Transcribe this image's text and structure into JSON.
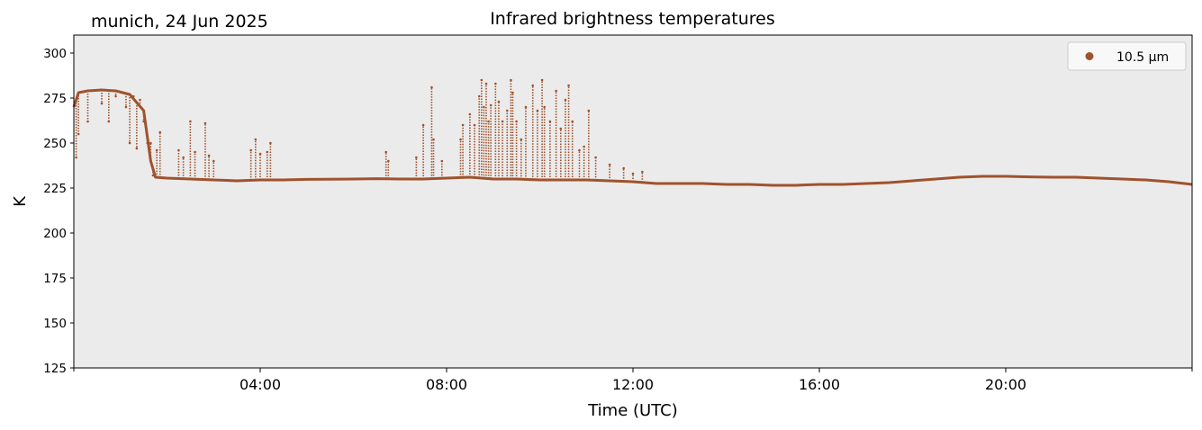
{
  "header": {
    "site_label": "munich, 24 Jun 2025",
    "title": "Infrared brightness temperatures"
  },
  "chart_data": {
    "type": "scatter",
    "title": "Infrared brightness temperatures",
    "xlabel": "Time (UTC)",
    "ylabel": "K",
    "xlim": [
      0,
      24
    ],
    "ylim": [
      125,
      310
    ],
    "x_ticks": [
      {
        "value": 4,
        "label": "04:00"
      },
      {
        "value": 8,
        "label": "08:00"
      },
      {
        "value": 12,
        "label": "12:00"
      },
      {
        "value": 16,
        "label": "16:00"
      },
      {
        "value": 20,
        "label": "20:00"
      }
    ],
    "y_ticks": [
      125,
      150,
      175,
      200,
      225,
      250,
      275,
      300
    ],
    "grid": false,
    "background_color": "#ebebeb",
    "legend": {
      "position": "top-right"
    },
    "series": [
      {
        "name": "10.5 µm",
        "color": "#a0522d",
        "baseline": [
          [
            0.0,
            270
          ],
          [
            0.1,
            278
          ],
          [
            0.3,
            279
          ],
          [
            0.6,
            279.5
          ],
          [
            0.9,
            279
          ],
          [
            1.2,
            277
          ],
          [
            1.5,
            268
          ],
          [
            1.65,
            240
          ],
          [
            1.75,
            231
          ],
          [
            2.0,
            230.5
          ],
          [
            2.5,
            230
          ],
          [
            3.0,
            229.5
          ],
          [
            3.5,
            229
          ],
          [
            4.0,
            229.5
          ],
          [
            4.5,
            229.5
          ],
          [
            5.0,
            229.8
          ],
          [
            6.0,
            230
          ],
          [
            6.5,
            230.2
          ],
          [
            7.0,
            230
          ],
          [
            7.5,
            230
          ],
          [
            8.0,
            230.5
          ],
          [
            8.5,
            231
          ],
          [
            9.0,
            230
          ],
          [
            9.5,
            230
          ],
          [
            10.0,
            229.5
          ],
          [
            10.5,
            229.5
          ],
          [
            11.0,
            229.5
          ],
          [
            11.5,
            229
          ],
          [
            12.0,
            228.5
          ],
          [
            12.5,
            227.5
          ],
          [
            13.0,
            227.5
          ],
          [
            13.5,
            227.5
          ],
          [
            14.0,
            227
          ],
          [
            14.5,
            227
          ],
          [
            15.0,
            226.5
          ],
          [
            15.5,
            226.5
          ],
          [
            16.0,
            227
          ],
          [
            16.5,
            227
          ],
          [
            17.0,
            227.5
          ],
          [
            17.5,
            228
          ],
          [
            18.0,
            229
          ],
          [
            18.5,
            230
          ],
          [
            19.0,
            231
          ],
          [
            19.5,
            231.5
          ],
          [
            20.0,
            231.5
          ],
          [
            20.5,
            231.2
          ],
          [
            21.0,
            231
          ],
          [
            21.5,
            231
          ],
          [
            22.0,
            230.5
          ],
          [
            22.5,
            230
          ],
          [
            23.0,
            229.5
          ],
          [
            23.5,
            228.5
          ],
          [
            24.0,
            227
          ]
        ],
        "spikes": [
          [
            0.05,
            242
          ],
          [
            0.1,
            255
          ],
          [
            0.3,
            262
          ],
          [
            0.6,
            272
          ],
          [
            0.75,
            262
          ],
          [
            0.9,
            276
          ],
          [
            1.05,
            278
          ],
          [
            1.12,
            270
          ],
          [
            1.2,
            250
          ],
          [
            1.28,
            276
          ],
          [
            1.35,
            247
          ],
          [
            1.42,
            274
          ],
          [
            1.5,
            262
          ],
          [
            1.58,
            250
          ],
          [
            1.65,
            250
          ],
          [
            1.7,
            232
          ],
          [
            1.78,
            246
          ],
          [
            1.85,
            256
          ],
          [
            2.25,
            246
          ],
          [
            2.35,
            242
          ],
          [
            2.5,
            262
          ],
          [
            2.6,
            245
          ],
          [
            2.82,
            261
          ],
          [
            2.9,
            243
          ],
          [
            3.0,
            240
          ],
          [
            3.8,
            246
          ],
          [
            3.9,
            252
          ],
          [
            4.0,
            244
          ],
          [
            4.15,
            245
          ],
          [
            4.22,
            250
          ],
          [
            6.7,
            245
          ],
          [
            6.75,
            240
          ],
          [
            7.35,
            242
          ],
          [
            7.5,
            260
          ],
          [
            7.68,
            281
          ],
          [
            7.72,
            252
          ],
          [
            7.9,
            240
          ],
          [
            8.3,
            252
          ],
          [
            8.35,
            260
          ],
          [
            8.5,
            266
          ],
          [
            8.6,
            260
          ],
          [
            8.7,
            276
          ],
          [
            8.75,
            285
          ],
          [
            8.8,
            270
          ],
          [
            8.85,
            283
          ],
          [
            8.9,
            262
          ],
          [
            8.95,
            271
          ],
          [
            9.05,
            283
          ],
          [
            9.12,
            273
          ],
          [
            9.2,
            262
          ],
          [
            9.3,
            268
          ],
          [
            9.38,
            285
          ],
          [
            9.42,
            278
          ],
          [
            9.5,
            262
          ],
          [
            9.6,
            252
          ],
          [
            9.7,
            270
          ],
          [
            9.85,
            282
          ],
          [
            9.95,
            268
          ],
          [
            10.05,
            285
          ],
          [
            10.1,
            270
          ],
          [
            10.22,
            262
          ],
          [
            10.35,
            279
          ],
          [
            10.45,
            258
          ],
          [
            10.55,
            274
          ],
          [
            10.62,
            282
          ],
          [
            10.7,
            262
          ],
          [
            10.85,
            246
          ],
          [
            10.95,
            248
          ],
          [
            11.05,
            268
          ],
          [
            11.2,
            242
          ],
          [
            11.5,
            238
          ],
          [
            11.8,
            236
          ],
          [
            12.0,
            233
          ],
          [
            12.2,
            234
          ]
        ]
      }
    ]
  }
}
